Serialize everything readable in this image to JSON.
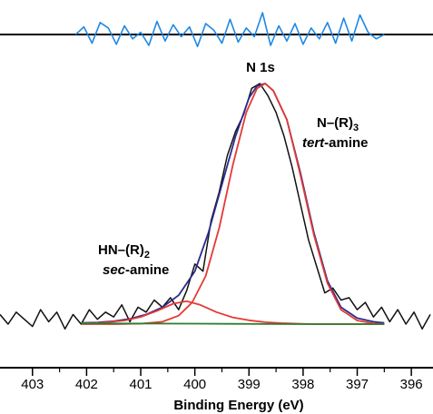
{
  "chart_data": {
    "type": "line",
    "title": "",
    "xlabel": "Binding Energy (eV)",
    "ylabel": "",
    "x_reversed": true,
    "xlim": [
      403.6,
      395.6
    ],
    "ylim": [
      0,
      1
    ],
    "x_ticks": [
      403,
      402,
      401,
      400,
      399,
      398,
      397,
      396
    ],
    "x_tick_labels": [
      "403",
      "402",
      "401",
      "400",
      "399",
      "398",
      "397",
      "396"
    ],
    "grid": false,
    "legend": "none",
    "annotations": {
      "peak": "N 1s",
      "tert_line1": "N–(R)",
      "tert_sub": "3",
      "tert_line2_italic": "tert",
      "tert_line2_rest": "-amine",
      "sec_line1": "HN–(R)",
      "sec_sub": "2",
      "sec_line2_italic": "sec",
      "sec_line2_rest": "-amine"
    },
    "residual": {
      "color": "#1e88e5",
      "x": [
        402.2,
        402.05,
        401.9,
        401.75,
        401.6,
        401.45,
        401.3,
        401.15,
        401.0,
        400.85,
        400.7,
        400.55,
        400.4,
        400.25,
        400.1,
        399.95,
        399.8,
        399.65,
        399.5,
        399.35,
        399.2,
        399.05,
        398.9,
        398.75,
        398.6,
        398.45,
        398.3,
        398.15,
        398.0,
        397.85,
        397.7,
        397.55,
        397.4,
        397.25,
        397.1,
        396.95,
        396.8,
        396.65,
        396.5
      ],
      "y": [
        0.0,
        0.35,
        -0.4,
        0.55,
        0.3,
        -0.45,
        0.4,
        -0.2,
        0.1,
        -0.5,
        0.6,
        -0.3,
        0.45,
        -0.1,
        0.35,
        -0.55,
        0.5,
        0.2,
        -0.4,
        0.7,
        -0.35,
        0.3,
        -0.1,
        1.0,
        -0.5,
        0.4,
        -0.3,
        0.5,
        -0.45,
        0.3,
        -0.2,
        0.55,
        -0.4,
        0.75,
        -0.3,
        0.9,
        0.1,
        -0.2,
        0.0
      ]
    },
    "series": [
      {
        "name": "",
        "role": "raw",
        "color": "#111111",
        "x": [
          403.6,
          403.45,
          403.3,
          403.15,
          403.0,
          402.85,
          402.7,
          402.55,
          402.4,
          402.25,
          402.1,
          401.95,
          401.8,
          401.65,
          401.5,
          401.35,
          401.2,
          401.05,
          400.9,
          400.75,
          400.6,
          400.45,
          400.3,
          400.15,
          400.0,
          399.85,
          399.7,
          399.55,
          399.4,
          399.25,
          399.1,
          398.95,
          398.8,
          398.65,
          398.5,
          398.35,
          398.2,
          398.05,
          397.9,
          397.75,
          397.6,
          397.45,
          397.3,
          397.15,
          397.0,
          396.85,
          396.7,
          396.55,
          396.4,
          396.25,
          396.1,
          395.95,
          395.8,
          395.65
        ],
        "y": [
          0.04,
          0.0,
          0.05,
          0.02,
          -0.01,
          0.06,
          0.01,
          0.05,
          -0.02,
          0.04,
          0.0,
          0.06,
          0.02,
          0.05,
          0.03,
          0.08,
          0.01,
          0.07,
          0.05,
          0.1,
          0.07,
          0.11,
          0.06,
          0.14,
          0.25,
          0.22,
          0.43,
          0.55,
          0.7,
          0.8,
          0.87,
          0.98,
          1.0,
          0.95,
          0.88,
          0.78,
          0.65,
          0.5,
          0.35,
          0.24,
          0.13,
          0.15,
          0.1,
          0.11,
          0.06,
          0.09,
          0.03,
          0.07,
          0.01,
          0.06,
          0.0,
          0.05,
          -0.02,
          0.04
        ]
      },
      {
        "name": "",
        "role": "envelope",
        "color": "#2b2b8c",
        "x": [
          402.1,
          401.8,
          401.5,
          401.2,
          400.9,
          400.6,
          400.3,
          400.0,
          399.75,
          399.5,
          399.25,
          399.0,
          398.85,
          398.7,
          398.55,
          398.3,
          398.05,
          397.8,
          397.55,
          397.3,
          397.0,
          396.7,
          396.5
        ],
        "y": [
          0.005,
          0.007,
          0.012,
          0.022,
          0.04,
          0.07,
          0.12,
          0.22,
          0.38,
          0.58,
          0.78,
          0.94,
          0.99,
          1.0,
          0.97,
          0.85,
          0.63,
          0.38,
          0.18,
          0.07,
          0.025,
          0.01,
          0.005
        ]
      },
      {
        "name": "",
        "role": "tert-amine component",
        "color": "#e53935",
        "x": [
          402.1,
          401.5,
          401.0,
          400.6,
          400.3,
          400.05,
          399.8,
          399.55,
          399.3,
          399.05,
          398.85,
          398.7,
          398.55,
          398.3,
          398.05,
          397.8,
          397.55,
          397.3,
          397.0,
          396.7,
          396.5
        ],
        "y": [
          0.0,
          0.0,
          0.002,
          0.01,
          0.035,
          0.09,
          0.2,
          0.4,
          0.66,
          0.88,
          0.98,
          1.0,
          0.97,
          0.85,
          0.62,
          0.37,
          0.17,
          0.06,
          0.015,
          0.003,
          0.0
        ]
      },
      {
        "name": "",
        "role": "sec-amine component",
        "color": "#e53935",
        "x": [
          402.1,
          401.7,
          401.3,
          401.0,
          400.7,
          400.4,
          400.15,
          399.9,
          399.6,
          399.3,
          399.0,
          398.7,
          398.4,
          398.1,
          397.8,
          397.5,
          397.2,
          396.9,
          396.5
        ],
        "y": [
          0.003,
          0.006,
          0.015,
          0.03,
          0.055,
          0.085,
          0.095,
          0.08,
          0.05,
          0.028,
          0.016,
          0.008,
          0.004,
          0.002,
          0.0,
          0.0,
          0.0,
          0.0,
          0.0
        ]
      },
      {
        "name": "",
        "role": "baseline",
        "color": "#2e7d32",
        "x": [
          402.1,
          400.0,
          398.0,
          396.5
        ],
        "y": [
          0.003,
          0.002,
          0.0,
          0.0
        ]
      }
    ]
  }
}
